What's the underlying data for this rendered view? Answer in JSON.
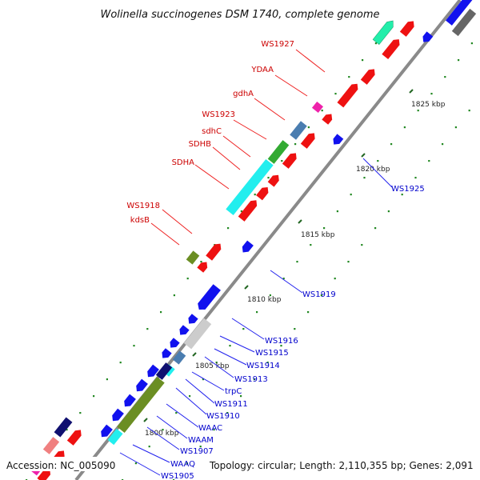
{
  "title": "Wolinella succinogenes DSM 1740, complete genome",
  "accession": "Accession: NC_005090",
  "topology": "Topology: circular; Length: 2,110,355 bp; Genes: 2,091",
  "ticks": {
    "t1800": "1800 kbp",
    "t1805": "1805 kbp",
    "t1810": "1810 kbp",
    "t1815": "1815 kbp",
    "t1820": "1820 kbp",
    "t1825": "1825 kbp"
  },
  "gene_labels": {
    "ws1927": "WS1927",
    "ydaa": "YDAA",
    "gdha": "gdhA",
    "ws1923": "WS1923",
    "sdhc": "sdhC",
    "sdhb": "SDHB",
    "sdha": "SDHA",
    "ws1918": "WS1918",
    "kdsb": "kdsB",
    "ws1925": "WS1925",
    "ws1919": "WS1919",
    "ws1916": "WS1916",
    "ws1915": "WS1915",
    "ws1914": "WS1914",
    "ws1913": "WS1913",
    "trpc": "trpC",
    "ws1911": "WS1911",
    "ws1910": "WS1910",
    "waac": "WAAC",
    "waam": "WAAM",
    "ws1907": "WS1907",
    "waaq": "WAAQ",
    "ws1905": "WS1905"
  },
  "colors": {
    "red": "#ee1111",
    "blue": "#1111ee",
    "cyan": "#22eeee",
    "green": "#33aa33",
    "olive": "#6b8e23",
    "steelblue": "#4a7db0",
    "pink": "#ee22aa",
    "teal": "#22eeaa",
    "gray": "#bbbbbb",
    "navy": "#101070",
    "salmon": "#f08080",
    "backbone": "#888888"
  }
}
